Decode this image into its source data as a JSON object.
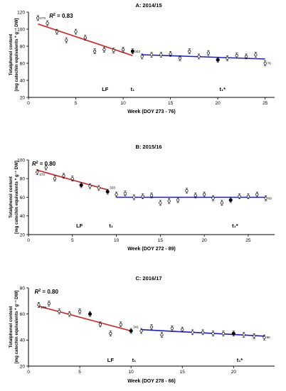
{
  "chart_data": [
    {
      "type": "scatter",
      "title": "A: 2014/15",
      "xlabel": "Week (DOY 273 - 76)",
      "ylabel": [
        "Totalphenol content",
        "[mg catechin equivalents * g⁻¹ DW]"
      ],
      "xlim": [
        0,
        26
      ],
      "ylim": [
        20,
        120
      ],
      "xticks": [
        0,
        5,
        10,
        15,
        20,
        25
      ],
      "yticks": [
        20,
        40,
        60,
        80,
        100,
        120
      ],
      "r2": "0.83",
      "annotations": [
        "LF",
        "t₁",
        "t₁*"
      ],
      "first_label": "273",
      "last_label": "76",
      "mid_label": "343",
      "series": [
        {
          "color": "#d62020",
          "points": [
            [
              1,
              113
            ],
            [
              2,
              107
            ],
            [
              3,
              97
            ],
            [
              4,
              87
            ],
            [
              5,
              97
            ],
            [
              6,
              90
            ],
            [
              7,
              74
            ],
            [
              8,
              76
            ],
            [
              9,
              75
            ],
            [
              10,
              76
            ],
            [
              11,
              74
            ]
          ],
          "filled": [
            11
          ],
          "fit": [
            [
              1,
              106
            ],
            [
              11,
              69
            ]
          ]
        },
        {
          "color": "#1a1adf",
          "points": [
            [
              12,
              68
            ],
            [
              13,
              70
            ],
            [
              14,
              70
            ],
            [
              15,
              71
            ],
            [
              16,
              66
            ],
            [
              17,
              74
            ],
            [
              18,
              68
            ],
            [
              19,
              72
            ],
            [
              20,
              64
            ],
            [
              21,
              66
            ],
            [
              22,
              69
            ],
            [
              23,
              68
            ],
            [
              24,
              70
            ],
            [
              25,
              60
            ]
          ],
          "filled": [
            20
          ],
          "fit": [
            [
              12,
              70
            ],
            [
              25,
              65
            ]
          ]
        }
      ]
    },
    {
      "type": "scatter",
      "title": "B: 2015/16",
      "xlabel": "Week (DOY 272 - 89)",
      "ylabel": [
        "Totalphenol content",
        "[mg catechin equivalents * g⁻¹ DW]"
      ],
      "xlim": [
        0,
        28
      ],
      "ylim": [
        20,
        100
      ],
      "xticks": [
        0,
        5,
        10,
        15,
        20,
        25
      ],
      "yticks": [
        20,
        40,
        60,
        80,
        100
      ],
      "r2": "0.80",
      "annotations": [
        "LF",
        "t₁",
        "t₁*"
      ],
      "first_label": "272",
      "last_label": "89",
      "mid_label": "328",
      "series": [
        {
          "color": "#d62020",
          "points": [
            [
              1,
              87
            ],
            [
              2,
              92
            ],
            [
              3,
              80
            ],
            [
              4,
              83
            ],
            [
              5,
              80
            ],
            [
              6,
              73
            ],
            [
              7,
              72
            ],
            [
              8,
              70
            ],
            [
              9,
              66
            ]
          ],
          "filled": [
            6,
            9
          ],
          "fit": [
            [
              1,
              89
            ],
            [
              9,
              68
            ]
          ]
        },
        {
          "color": "#1a1adf",
          "points": [
            [
              10,
              63
            ],
            [
              11,
              64
            ],
            [
              12,
              60
            ],
            [
              13,
              61
            ],
            [
              14,
              62
            ],
            [
              15,
              54
            ],
            [
              16,
              56
            ],
            [
              17,
              57
            ],
            [
              18,
              67
            ],
            [
              19,
              62
            ],
            [
              20,
              63
            ],
            [
              21,
              59
            ],
            [
              22,
              54
            ],
            [
              23,
              57
            ],
            [
              24,
              61
            ],
            [
              25,
              61
            ],
            [
              26,
              63
            ],
            [
              27,
              59
            ]
          ],
          "filled": [
            23
          ],
          "fit": [
            [
              10,
              60
            ],
            [
              27,
              60
            ]
          ]
        }
      ]
    },
    {
      "type": "scatter",
      "title": "C: 2016/17",
      "xlabel": "Week (DOY 278 - 66)",
      "ylabel": [
        "Totalphenol content",
        "[mg catechin equivalents * g⁻¹ DW]"
      ],
      "xlim": [
        0,
        24
      ],
      "ylim": [
        20,
        80
      ],
      "xticks": [
        0,
        5,
        10,
        15,
        20
      ],
      "yticks": [
        20,
        40,
        60,
        80
      ],
      "r2": "0.80",
      "annotations": [
        "LF",
        "t₁",
        "t₁*"
      ],
      "first_label": "278",
      "last_label": "66",
      "mid_label": "341",
      "series": [
        {
          "color": "#d62020",
          "points": [
            [
              1,
              67
            ],
            [
              2,
              68
            ],
            [
              3,
              62
            ],
            [
              4,
              60
            ],
            [
              5,
              62
            ],
            [
              6,
              60
            ],
            [
              7,
              52
            ],
            [
              8,
              45
            ],
            [
              9,
              52
            ],
            [
              10,
              47
            ]
          ],
          "filled": [
            6,
            10
          ],
          "fit": [
            [
              1,
              66
            ],
            [
              10,
              47
            ]
          ]
        },
        {
          "color": "#1a1adf",
          "points": [
            [
              11,
              47
            ],
            [
              12,
              50
            ],
            [
              13,
              44
            ],
            [
              14,
              49
            ],
            [
              15,
              48
            ],
            [
              16,
              46
            ],
            [
              17,
              46
            ],
            [
              18,
              45
            ],
            [
              19,
              45
            ],
            [
              20,
              45
            ],
            [
              21,
              44
            ],
            [
              22,
              43
            ],
            [
              23,
              42
            ]
          ],
          "filled": [
            20
          ],
          "fit": [
            [
              11,
              48
            ],
            [
              23,
              43
            ]
          ]
        }
      ]
    }
  ]
}
